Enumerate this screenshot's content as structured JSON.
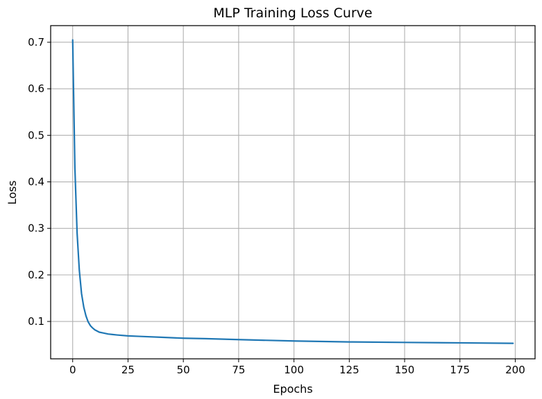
{
  "chart_data": {
    "type": "line",
    "title": "MLP Training Loss Curve",
    "xlabel": "Epochs",
    "ylabel": "Loss",
    "xlim": [
      -9.95,
      208.95
    ],
    "ylim": [
      0.0197,
      0.7357
    ],
    "xticks": [
      0,
      25,
      50,
      75,
      100,
      125,
      150,
      175,
      200
    ],
    "yticks": [
      0.1,
      0.2,
      0.3,
      0.4,
      0.5,
      0.6,
      0.7
    ],
    "xtick_labels": [
      "0",
      "25",
      "50",
      "75",
      "100",
      "125",
      "150",
      "175",
      "200"
    ],
    "ytick_labels": [
      "0.1",
      "0.2",
      "0.3",
      "0.4",
      "0.5",
      "0.6",
      "0.7"
    ],
    "grid": true,
    "colors": {
      "line": "#1f77b4",
      "grid": "#b0b0b0",
      "axes": "#000000"
    },
    "series": [
      {
        "x": [
          0,
          1,
          2,
          3,
          4,
          5,
          6,
          7,
          8,
          9,
          10,
          12,
          14,
          16,
          18,
          20,
          25,
          30,
          40,
          50,
          60,
          75,
          100,
          125,
          150,
          175,
          199
        ],
        "y": [
          0.705,
          0.43,
          0.29,
          0.21,
          0.16,
          0.131,
          0.112,
          0.099,
          0.091,
          0.086,
          0.082,
          0.077,
          0.075,
          0.073,
          0.072,
          0.071,
          0.069,
          0.068,
          0.066,
          0.064,
          0.063,
          0.061,
          0.058,
          0.056,
          0.055,
          0.054,
          0.053
        ]
      }
    ]
  }
}
